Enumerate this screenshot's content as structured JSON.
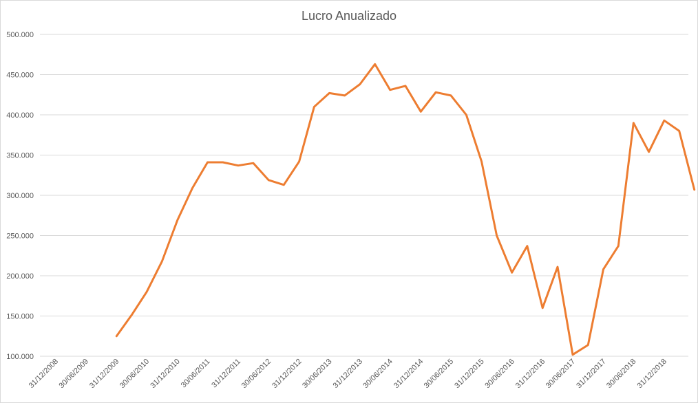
{
  "chart_data": {
    "type": "line",
    "title": "Lucro Anualizado",
    "xlabel": "",
    "ylabel": "",
    "ylim": [
      100000,
      500000
    ],
    "y_ticks": [
      100000,
      150000,
      200000,
      250000,
      300000,
      350000,
      400000,
      450000,
      500000
    ],
    "y_tick_labels": [
      "100.000",
      "150.000",
      "200.000",
      "250.000",
      "300.000",
      "350.000",
      "400.000",
      "450.000",
      "500.000"
    ],
    "x_tick_labels": [
      "31/12/2008",
      "30/06/2009",
      "31/12/2009",
      "30/06/2010",
      "31/12/2010",
      "30/06/2011",
      "31/12/2011",
      "30/06/2012",
      "31/12/2012",
      "30/06/2013",
      "31/12/2013",
      "30/06/2014",
      "31/12/2014",
      "30/06/2015",
      "31/12/2015",
      "30/06/2016",
      "31/12/2016",
      "30/06/2017",
      "31/12/2017",
      "30/06/2018",
      "31/12/2018"
    ],
    "grid": true,
    "legend": "none",
    "series": [
      {
        "color": "#ED7D31",
        "points": [
          {
            "x": "31/12/2009",
            "y": 125000
          },
          {
            "x": "31/03/2010",
            "y": 151000
          },
          {
            "x": "30/06/2010",
            "y": 180000
          },
          {
            "x": "30/09/2010",
            "y": 218000
          },
          {
            "x": "31/12/2010",
            "y": 269000
          },
          {
            "x": "31/03/2011",
            "y": 309000
          },
          {
            "x": "30/06/2011",
            "y": 341000
          },
          {
            "x": "30/09/2011",
            "y": 341000
          },
          {
            "x": "31/12/2011",
            "y": 337000
          },
          {
            "x": "31/03/2012",
            "y": 340000
          },
          {
            "x": "30/06/2012",
            "y": 319000
          },
          {
            "x": "30/09/2012",
            "y": 313000
          },
          {
            "x": "31/12/2012",
            "y": 342000
          },
          {
            "x": "31/03/2013",
            "y": 410000
          },
          {
            "x": "30/06/2013",
            "y": 427000
          },
          {
            "x": "30/09/2013",
            "y": 424000
          },
          {
            "x": "31/12/2013",
            "y": 438000
          },
          {
            "x": "31/03/2014",
            "y": 463000
          },
          {
            "x": "30/06/2014",
            "y": 431000
          },
          {
            "x": "30/09/2014",
            "y": 436000
          },
          {
            "x": "31/12/2014",
            "y": 404000
          },
          {
            "x": "31/03/2015",
            "y": 428000
          },
          {
            "x": "30/06/2015",
            "y": 424000
          },
          {
            "x": "30/09/2015",
            "y": 400000
          },
          {
            "x": "31/12/2015",
            "y": 342000
          },
          {
            "x": "31/03/2016",
            "y": 250000
          },
          {
            "x": "30/06/2016",
            "y": 204000
          },
          {
            "x": "30/09/2016",
            "y": 237000
          },
          {
            "x": "31/12/2016",
            "y": 160000
          },
          {
            "x": "31/03/2017",
            "y": 211000
          },
          {
            "x": "30/06/2017",
            "y": 102000
          },
          {
            "x": "30/09/2017",
            "y": 114000
          },
          {
            "x": "31/12/2017",
            "y": 208000
          },
          {
            "x": "31/03/2018",
            "y": 237000
          },
          {
            "x": "30/06/2018",
            "y": 390000
          },
          {
            "x": "30/09/2018",
            "y": 354000
          },
          {
            "x": "31/12/2018",
            "y": 393000
          },
          {
            "x": "31/03/2019",
            "y": 380000
          },
          {
            "x": "30/06/2019",
            "y": 307000
          }
        ]
      }
    ]
  }
}
